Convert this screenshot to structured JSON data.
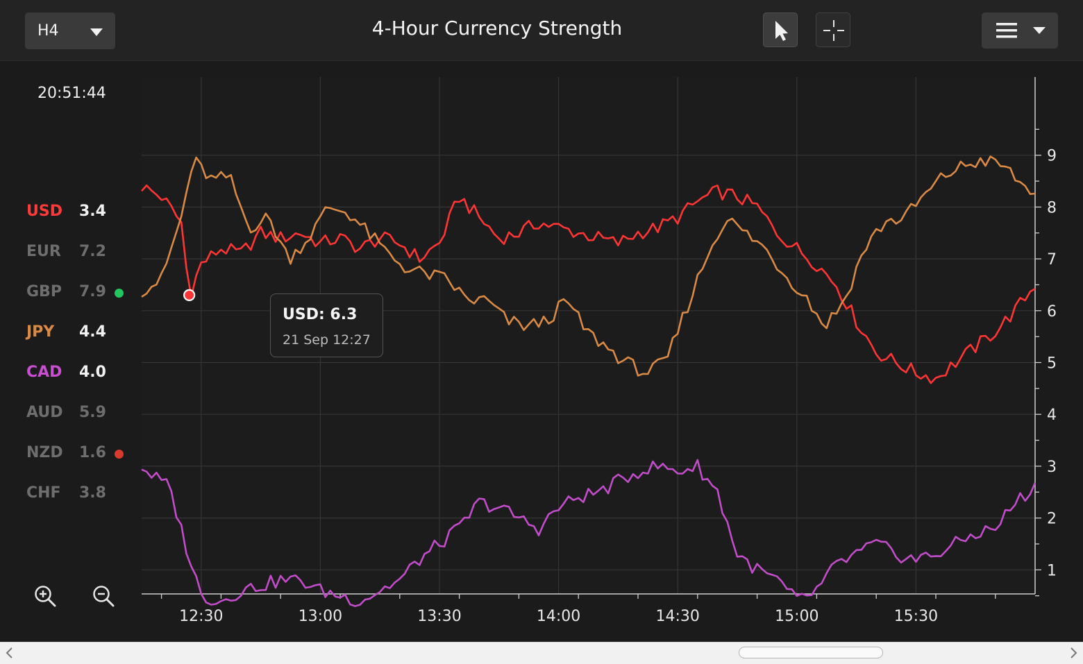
{
  "toolbar": {
    "timeframe": "H4",
    "title": "4-Hour Currency Strength",
    "pointer_tool": "pointer-icon",
    "crosshair_tool": "crosshair-icon",
    "menu": "hamburger-menu-icon"
  },
  "clock": "20:51:44",
  "legend": [
    {
      "code": "USD",
      "value": "3.4",
      "color": "#ff3b3b",
      "active": true,
      "dot": null
    },
    {
      "code": "EUR",
      "value": "7.2",
      "color": "#6e6e6e",
      "active": false,
      "dot": null
    },
    {
      "code": "GBP",
      "value": "7.9",
      "color": "#6e6e6e",
      "active": false,
      "dot": "#22c55e"
    },
    {
      "code": "JPY",
      "value": "4.4",
      "color": "#d98a45",
      "active": true,
      "dot": null
    },
    {
      "code": "CAD",
      "value": "4.0",
      "color": "#c94fd0",
      "active": true,
      "dot": null
    },
    {
      "code": "AUD",
      "value": "5.9",
      "color": "#6e6e6e",
      "active": false,
      "dot": null
    },
    {
      "code": "NZD",
      "value": "1.6",
      "color": "#6e6e6e",
      "active": false,
      "dot": "#d93a2e"
    },
    {
      "code": "CHF",
      "value": "3.8",
      "color": "#6e6e6e",
      "active": false,
      "dot": null
    }
  ],
  "tooltip": {
    "title": "USD: 6.3",
    "subtitle": "21 Sep 12:27"
  },
  "zoom": {
    "in": "zoom-in-icon",
    "out": "zoom-out-icon"
  },
  "chart_data": {
    "type": "line",
    "x_axis": {
      "min": "12:15",
      "max": "16:00",
      "ticks": [
        "12:30",
        "13:00",
        "13:30",
        "14:00",
        "14:30",
        "15:00",
        "15:30"
      ]
    },
    "y_axis": {
      "min": 0,
      "max": 10,
      "ticks": [
        1,
        2,
        3,
        4,
        5,
        6,
        7,
        8,
        9
      ],
      "position": "right"
    },
    "grid": true,
    "highlight": {
      "series": "USD",
      "x": "12:27",
      "y": 6.3
    },
    "series": [
      {
        "name": "USD",
        "color": "#ff3535",
        "points": [
          [
            "12:15",
            8.4
          ],
          [
            "12:20",
            8.2
          ],
          [
            "12:25",
            7.7
          ],
          [
            "12:27",
            6.3
          ],
          [
            "12:30",
            6.9
          ],
          [
            "12:35",
            7.2
          ],
          [
            "12:40",
            7.1
          ],
          [
            "12:45",
            7.5
          ],
          [
            "12:50",
            7.4
          ],
          [
            "12:55",
            7.5
          ],
          [
            "13:00",
            7.3
          ],
          [
            "13:05",
            7.4
          ],
          [
            "13:10",
            7.2
          ],
          [
            "13:15",
            7.4
          ],
          [
            "13:20",
            7.3
          ],
          [
            "13:25",
            7.0
          ],
          [
            "13:30",
            7.3
          ],
          [
            "13:35",
            8.2
          ],
          [
            "13:40",
            7.8
          ],
          [
            "13:45",
            7.4
          ],
          [
            "13:50",
            7.5
          ],
          [
            "13:55",
            7.7
          ],
          [
            "14:00",
            7.6
          ],
          [
            "14:05",
            7.5
          ],
          [
            "14:10",
            7.4
          ],
          [
            "14:15",
            7.3
          ],
          [
            "14:20",
            7.5
          ],
          [
            "14:25",
            7.6
          ],
          [
            "14:30",
            7.8
          ],
          [
            "14:35",
            8.1
          ],
          [
            "14:40",
            8.3
          ],
          [
            "14:45",
            8.2
          ],
          [
            "14:50",
            8.0
          ],
          [
            "14:55",
            7.5
          ],
          [
            "15:00",
            7.2
          ],
          [
            "15:05",
            6.9
          ],
          [
            "15:10",
            6.5
          ],
          [
            "15:15",
            5.8
          ],
          [
            "15:20",
            5.2
          ],
          [
            "15:25",
            5.0
          ],
          [
            "15:30",
            4.8
          ],
          [
            "15:35",
            4.7
          ],
          [
            "15:40",
            5.0
          ],
          [
            "15:45",
            5.3
          ],
          [
            "15:50",
            5.6
          ],
          [
            "15:55",
            6.0
          ],
          [
            "16:00",
            6.5
          ]
        ]
      },
      {
        "name": "JPY",
        "color": "#d98a45",
        "points": [
          [
            "12:15",
            6.4
          ],
          [
            "12:20",
            6.6
          ],
          [
            "12:25",
            7.8
          ],
          [
            "12:28",
            8.9
          ],
          [
            "12:33",
            8.5
          ],
          [
            "12:37",
            8.6
          ],
          [
            "12:42",
            7.6
          ],
          [
            "12:47",
            7.8
          ],
          [
            "12:52",
            7.0
          ],
          [
            "12:57",
            7.4
          ],
          [
            "13:02",
            8.0
          ],
          [
            "13:07",
            7.9
          ],
          [
            "13:12",
            7.5
          ],
          [
            "13:17",
            7.1
          ],
          [
            "13:22",
            6.8
          ],
          [
            "13:27",
            6.7
          ],
          [
            "13:32",
            6.6
          ],
          [
            "13:37",
            6.2
          ],
          [
            "13:42",
            6.2
          ],
          [
            "13:47",
            5.8
          ],
          [
            "13:52",
            5.7
          ],
          [
            "13:57",
            5.8
          ],
          [
            "14:02",
            6.2
          ],
          [
            "14:07",
            5.6
          ],
          [
            "14:12",
            5.3
          ],
          [
            "14:17",
            5.0
          ],
          [
            "14:22",
            4.8
          ],
          [
            "14:27",
            5.0
          ],
          [
            "14:32",
            6.0
          ],
          [
            "14:37",
            7.0
          ],
          [
            "14:42",
            7.8
          ],
          [
            "14:47",
            7.5
          ],
          [
            "14:52",
            7.2
          ],
          [
            "14:57",
            6.7
          ],
          [
            "15:02",
            6.3
          ],
          [
            "15:07",
            5.7
          ],
          [
            "15:12",
            6.2
          ],
          [
            "15:17",
            7.2
          ],
          [
            "15:22",
            7.7
          ],
          [
            "15:27",
            7.8
          ],
          [
            "15:32",
            8.2
          ],
          [
            "15:37",
            8.6
          ],
          [
            "15:42",
            8.8
          ],
          [
            "15:47",
            8.9
          ],
          [
            "15:52",
            8.8
          ],
          [
            "15:57",
            8.4
          ],
          [
            "16:00",
            8.3
          ]
        ]
      },
      {
        "name": "CAD",
        "color": "#c14dc8",
        "points": [
          [
            "12:15",
            3.0
          ],
          [
            "12:18",
            2.8
          ],
          [
            "12:22",
            2.6
          ],
          [
            "12:26",
            1.5
          ],
          [
            "12:30",
            0.5
          ],
          [
            "12:35",
            0.4
          ],
          [
            "12:40",
            0.6
          ],
          [
            "12:45",
            0.7
          ],
          [
            "12:50",
            0.8
          ],
          [
            "12:55",
            0.8
          ],
          [
            "13:00",
            0.6
          ],
          [
            "13:05",
            0.5
          ],
          [
            "13:10",
            0.4
          ],
          [
            "13:15",
            0.6
          ],
          [
            "13:20",
            0.8
          ],
          [
            "13:25",
            1.2
          ],
          [
            "13:30",
            1.5
          ],
          [
            "13:35",
            1.8
          ],
          [
            "13:40",
            2.3
          ],
          [
            "13:45",
            2.2
          ],
          [
            "13:50",
            2.0
          ],
          [
            "13:55",
            1.8
          ],
          [
            "14:00",
            2.2
          ],
          [
            "14:05",
            2.4
          ],
          [
            "14:10",
            2.5
          ],
          [
            "14:15",
            2.7
          ],
          [
            "14:20",
            2.9
          ],
          [
            "14:25",
            3.0
          ],
          [
            "14:30",
            2.9
          ],
          [
            "14:35",
            3.0
          ],
          [
            "14:40",
            2.5
          ],
          [
            "14:45",
            1.3
          ],
          [
            "14:50",
            1.0
          ],
          [
            "14:55",
            0.8
          ],
          [
            "15:00",
            0.4
          ],
          [
            "15:05",
            0.6
          ],
          [
            "15:10",
            1.1
          ],
          [
            "15:15",
            1.3
          ],
          [
            "15:20",
            1.5
          ],
          [
            "15:25",
            1.3
          ],
          [
            "15:30",
            1.2
          ],
          [
            "15:35",
            1.3
          ],
          [
            "15:40",
            1.5
          ],
          [
            "15:45",
            1.7
          ],
          [
            "15:50",
            1.8
          ],
          [
            "15:55",
            2.3
          ],
          [
            "16:00",
            2.6
          ]
        ]
      }
    ]
  }
}
